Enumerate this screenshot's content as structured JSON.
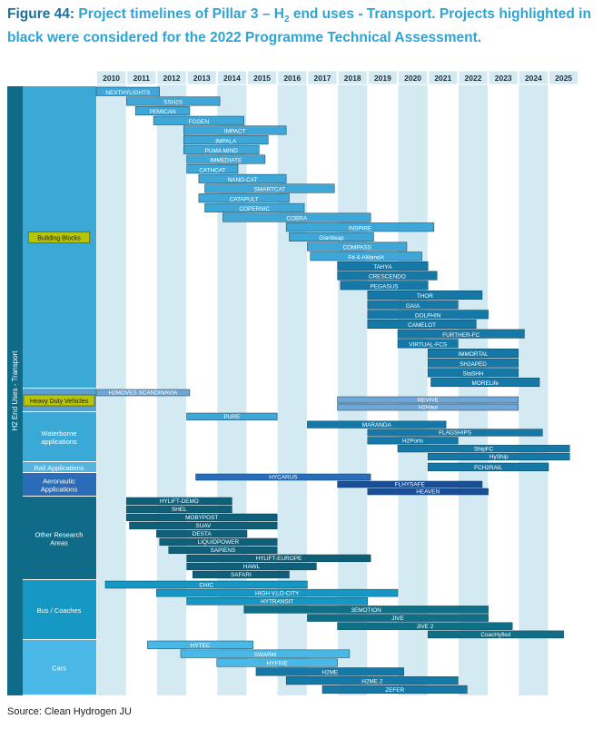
{
  "figure": {
    "label": "Figure 44:",
    "title_pre": "Project timelines of Pillar 3 – H",
    "title_sub": "2",
    "title_post": " end uses - Transport. Projects highlighted in black were considered for the 2022 Programme Technical Assessment.",
    "source": "Source: Clean Hydrogen JU"
  },
  "chart_data": {
    "type": "gantt",
    "x_axis": {
      "ticks": [
        "2010",
        "2011",
        "2012",
        "2013",
        "2014",
        "2015",
        "2016",
        "2017",
        "2018",
        "2019",
        "2020",
        "2021",
        "2022",
        "2023",
        "2024",
        "2025"
      ],
      "range": [
        2010,
        2026
      ]
    },
    "axis_label": "H2 End Uses - Transport",
    "colors": {
      "category_panel": "#3aa9d6",
      "axis_strip": "#0f6b87",
      "column_light": "#d4eaf3",
      "highlight_label": "#b8c40a",
      "bar_dark": "#0f5f78",
      "bar_light": "#6ea6d9"
    },
    "categories": [
      {
        "name": "Building Blocks",
        "highlight": true
      },
      {
        "name": "Heavy Duty Vehicles",
        "highlight": true
      },
      {
        "name": "Waterborne applications",
        "highlight": false
      },
      {
        "name": "Rail Applications",
        "highlight": false
      },
      {
        "name": "Aeronautic Applications",
        "highlight": false
      },
      {
        "name": "Other Research Areas",
        "highlight": false
      },
      {
        "name": "Bus / Coaches",
        "highlight": false
      },
      {
        "name": "Cars",
        "highlight": false
      }
    ],
    "projects": [
      {
        "name": "NEXTHYLIGHTS",
        "cat": "Building Blocks",
        "start": 2010.0,
        "end": 2012.1,
        "color": "#3fa6d8"
      },
      {
        "name": "SSH2S",
        "cat": "Building Blocks",
        "start": 2011.0,
        "end": 2014.1,
        "color": "#3fa6d8"
      },
      {
        "name": "PEMICAN",
        "cat": "Building Blocks",
        "start": 2011.3,
        "end": 2013.1,
        "color": "#3fa6d8"
      },
      {
        "name": "FCGEN",
        "cat": "Building Blocks",
        "start": 2011.9,
        "end": 2014.9,
        "color": "#3fa6d8"
      },
      {
        "name": "IMPACT",
        "cat": "Building Blocks",
        "start": 2012.9,
        "end": 2016.3,
        "color": "#3fa6d8"
      },
      {
        "name": "IMPALA",
        "cat": "Building Blocks",
        "start": 2012.9,
        "end": 2015.7,
        "color": "#3fa6d8"
      },
      {
        "name": "PUMA MIND",
        "cat": "Building Blocks",
        "start": 2012.9,
        "end": 2015.4,
        "color": "#3fa6d8"
      },
      {
        "name": "IMMEDIATE",
        "cat": "Building Blocks",
        "start": 2013.0,
        "end": 2015.6,
        "color": "#3fa6d8"
      },
      {
        "name": "CATHCAT",
        "cat": "Building Blocks",
        "start": 2013.0,
        "end": 2014.7,
        "color": "#3fa6d8"
      },
      {
        "name": "NANO-CAT",
        "cat": "Building Blocks",
        "start": 2013.4,
        "end": 2016.3,
        "color": "#3fa6d8"
      },
      {
        "name": "SMARTCAT",
        "cat": "Building Blocks",
        "start": 2013.6,
        "end": 2017.9,
        "color": "#3fa6d8"
      },
      {
        "name": "CATAPULT",
        "cat": "Building Blocks",
        "start": 2013.4,
        "end": 2016.4,
        "color": "#3fa6d8"
      },
      {
        "name": "COPERNIC",
        "cat": "Building Blocks",
        "start": 2013.6,
        "end": 2016.9,
        "color": "#3fa6d8"
      },
      {
        "name": "COBRA",
        "cat": "Building Blocks",
        "start": 2014.2,
        "end": 2019.1,
        "color": "#3fa6d8"
      },
      {
        "name": "INSPIRE",
        "cat": "Building Blocks",
        "start": 2016.3,
        "end": 2021.2,
        "color": "#3fa6d8"
      },
      {
        "name": "Giantleap",
        "cat": "Building Blocks",
        "start": 2016.4,
        "end": 2019.2,
        "color": "#3fa6d8"
      },
      {
        "name": "COMPASS",
        "cat": "Building Blocks",
        "start": 2017.0,
        "end": 2020.3,
        "color": "#3fa6d8"
      },
      {
        "name": "Fit-4-AMandA",
        "cat": "Building Blocks",
        "start": 2017.1,
        "end": 2020.8,
        "color": "#3fa6d8"
      },
      {
        "name": "TAHYA",
        "cat": "Building Blocks",
        "start": 2018.0,
        "end": 2021.0,
        "color": "#1578a6"
      },
      {
        "name": "CRESCENDO",
        "cat": "Building Blocks",
        "start": 2018.0,
        "end": 2021.3,
        "color": "#1578a6"
      },
      {
        "name": "PEGASUS",
        "cat": "Building Blocks",
        "start": 2018.1,
        "end": 2021.0,
        "color": "#1578a6"
      },
      {
        "name": "THOR",
        "cat": "Building Blocks",
        "start": 2019.0,
        "end": 2022.8,
        "color": "#1578a6"
      },
      {
        "name": "GAIA",
        "cat": "Building Blocks",
        "start": 2019.0,
        "end": 2022.0,
        "color": "#1578a6"
      },
      {
        "name": "DOLPHIN",
        "cat": "Building Blocks",
        "start": 2019.0,
        "end": 2023.0,
        "color": "#1578a6"
      },
      {
        "name": "CAMELOT",
        "cat": "Building Blocks",
        "start": 2019.0,
        "end": 2022.6,
        "color": "#1578a6"
      },
      {
        "name": "FURTHER-FC",
        "cat": "Building Blocks",
        "start": 2020.0,
        "end": 2024.2,
        "color": "#1578a6"
      },
      {
        "name": "VIRTUAL-FCS",
        "cat": "Building Blocks",
        "start": 2020.0,
        "end": 2022.0,
        "color": "#1578a6"
      },
      {
        "name": "IMMORTAL",
        "cat": "Building Blocks",
        "start": 2021.0,
        "end": 2024.0,
        "color": "#1578a6"
      },
      {
        "name": "SH2APED",
        "cat": "Building Blocks",
        "start": 2021.0,
        "end": 2024.0,
        "color": "#1578a6"
      },
      {
        "name": "StaSHH",
        "cat": "Building Blocks",
        "start": 2021.0,
        "end": 2024.0,
        "color": "#1578a6"
      },
      {
        "name": "MORELife",
        "cat": "Building Blocks",
        "start": 2021.1,
        "end": 2024.7,
        "color": "#1578a6"
      },
      {
        "name": "H2MOVES SCANDINAVIA",
        "cat": "Heavy Duty Vehicles",
        "start": 2010.0,
        "end": 2013.1,
        "color": "#6ea6d9"
      },
      {
        "name": "REVIVE",
        "cat": "Heavy Duty Vehicles",
        "start": 2018.0,
        "end": 2024.0,
        "color": "#6ea6d9"
      },
      {
        "name": "H2Haul",
        "cat": "Heavy Duty Vehicles",
        "start": 2018.0,
        "end": 2024.0,
        "color": "#6ea6d9"
      },
      {
        "name": "PURE",
        "cat": "Waterborne applications",
        "start": 2013.0,
        "end": 2016.0,
        "color": "#3fa6d8"
      },
      {
        "name": "MARANDA",
        "cat": "Waterborne applications",
        "start": 2017.0,
        "end": 2021.6,
        "color": "#1578a6"
      },
      {
        "name": "FLAGSHIPS",
        "cat": "Waterborne applications",
        "start": 2019.0,
        "end": 2024.8,
        "color": "#1578a6"
      },
      {
        "name": "H2Ports",
        "cat": "Waterborne applications",
        "start": 2019.0,
        "end": 2022.0,
        "color": "#1578a6"
      },
      {
        "name": "ShipFC",
        "cat": "Waterborne applications",
        "start": 2020.0,
        "end": 2025.7,
        "color": "#1578a6"
      },
      {
        "name": "HyShip",
        "cat": "Waterborne applications",
        "start": 2021.0,
        "end": 2025.7,
        "color": "#1578a6"
      },
      {
        "name": "FCH2RAIL",
        "cat": "Rail Applications",
        "start": 2021.0,
        "end": 2025.0,
        "color": "#1578a6"
      },
      {
        "name": "HYCARUS",
        "cat": "Aeronautic Applications",
        "start": 2013.3,
        "end": 2019.1,
        "color": "#2a6cb8"
      },
      {
        "name": "FLHYSAFE",
        "cat": "Aeronautic Applications",
        "start": 2018.0,
        "end": 2022.8,
        "color": "#1a4f97"
      },
      {
        "name": "HEAVEN",
        "cat": "Aeronautic Applications",
        "start": 2019.0,
        "end": 2023.0,
        "color": "#1a4f97"
      },
      {
        "name": "HYLIFT-DEMO",
        "cat": "Other Research Areas",
        "start": 2011.0,
        "end": 2014.5,
        "color": "#0f5f78"
      },
      {
        "name": "SHEL",
        "cat": "Other Research Areas",
        "start": 2011.0,
        "end": 2014.5,
        "color": "#0f5f78"
      },
      {
        "name": "MOBYPOST",
        "cat": "Other Research Areas",
        "start": 2011.0,
        "end": 2016.0,
        "color": "#0f5f78"
      },
      {
        "name": "SUAV",
        "cat": "Other Research Areas",
        "start": 2011.1,
        "end": 2016.0,
        "color": "#0f5f78"
      },
      {
        "name": "DESTA",
        "cat": "Other Research Areas",
        "start": 2012.0,
        "end": 2015.0,
        "color": "#0f5f78"
      },
      {
        "name": "LIQUIDPOWER",
        "cat": "Other Research Areas",
        "start": 2012.1,
        "end": 2016.0,
        "color": "#0f5f78"
      },
      {
        "name": "SAPIENS",
        "cat": "Other Research Areas",
        "start": 2012.4,
        "end": 2016.0,
        "color": "#0f5f78"
      },
      {
        "name": "HYLIFT-EUROPE",
        "cat": "Other Research Areas",
        "start": 2013.0,
        "end": 2019.1,
        "color": "#0f5f78"
      },
      {
        "name": "HAWL",
        "cat": "Other Research Areas",
        "start": 2013.0,
        "end": 2017.3,
        "color": "#0f5f78"
      },
      {
        "name": "SAFARI",
        "cat": "Other Research Areas",
        "start": 2013.2,
        "end": 2016.4,
        "color": "#0f5f78"
      },
      {
        "name": "CHIC",
        "cat": "Bus / Coaches",
        "start": 2010.3,
        "end": 2017.0,
        "color": "#1598c4"
      },
      {
        "name": "HIGH V.LO-CITY",
        "cat": "Bus / Coaches",
        "start": 2012.0,
        "end": 2020.0,
        "color": "#1598c4"
      },
      {
        "name": "HYTRANSIT",
        "cat": "Bus / Coaches",
        "start": 2013.0,
        "end": 2019.0,
        "color": "#1598c4"
      },
      {
        "name": "3EMOTION",
        "cat": "Bus / Coaches",
        "start": 2014.9,
        "end": 2023.0,
        "color": "#0f6f86"
      },
      {
        "name": "JIVE",
        "cat": "Bus / Coaches",
        "start": 2017.0,
        "end": 2023.0,
        "color": "#0f6f86"
      },
      {
        "name": "JIVE 2",
        "cat": "Bus / Coaches",
        "start": 2018.0,
        "end": 2023.8,
        "color": "#0f6f86"
      },
      {
        "name": "CoacHyfied",
        "cat": "Bus / Coaches",
        "start": 2021.0,
        "end": 2025.5,
        "color": "#0f6f86"
      },
      {
        "name": "HYTEC",
        "cat": "Cars",
        "start": 2011.7,
        "end": 2015.2,
        "color": "#4ab8e6"
      },
      {
        "name": "SWARM",
        "cat": "Cars",
        "start": 2012.8,
        "end": 2018.4,
        "color": "#4ab8e6"
      },
      {
        "name": "HYFIVE",
        "cat": "Cars",
        "start": 2014.0,
        "end": 2018.0,
        "color": "#4ab8e6"
      },
      {
        "name": "H2ME",
        "cat": "Cars",
        "start": 2015.3,
        "end": 2020.2,
        "color": "#1578a6"
      },
      {
        "name": "H2ME 2",
        "cat": "Cars",
        "start": 2016.3,
        "end": 2022.0,
        "color": "#1578a6"
      },
      {
        "name": "ZEFER",
        "cat": "Cars",
        "start": 2017.5,
        "end": 2022.3,
        "color": "#1578a6"
      }
    ]
  }
}
